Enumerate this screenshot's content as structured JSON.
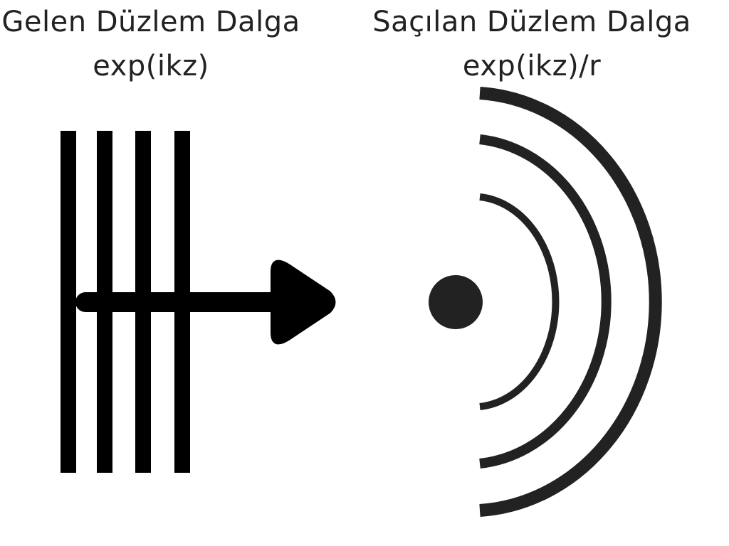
{
  "incident": {
    "title": "Gelen Düzlem Dalga",
    "formula": "exp(ikz)"
  },
  "scattered": {
    "title": "Saçılan Düzlem Dalga",
    "formula": "exp(ikz)/r"
  },
  "colors": {
    "stroke": "#000000",
    "scatterer": "#222222",
    "text": "#222222"
  }
}
